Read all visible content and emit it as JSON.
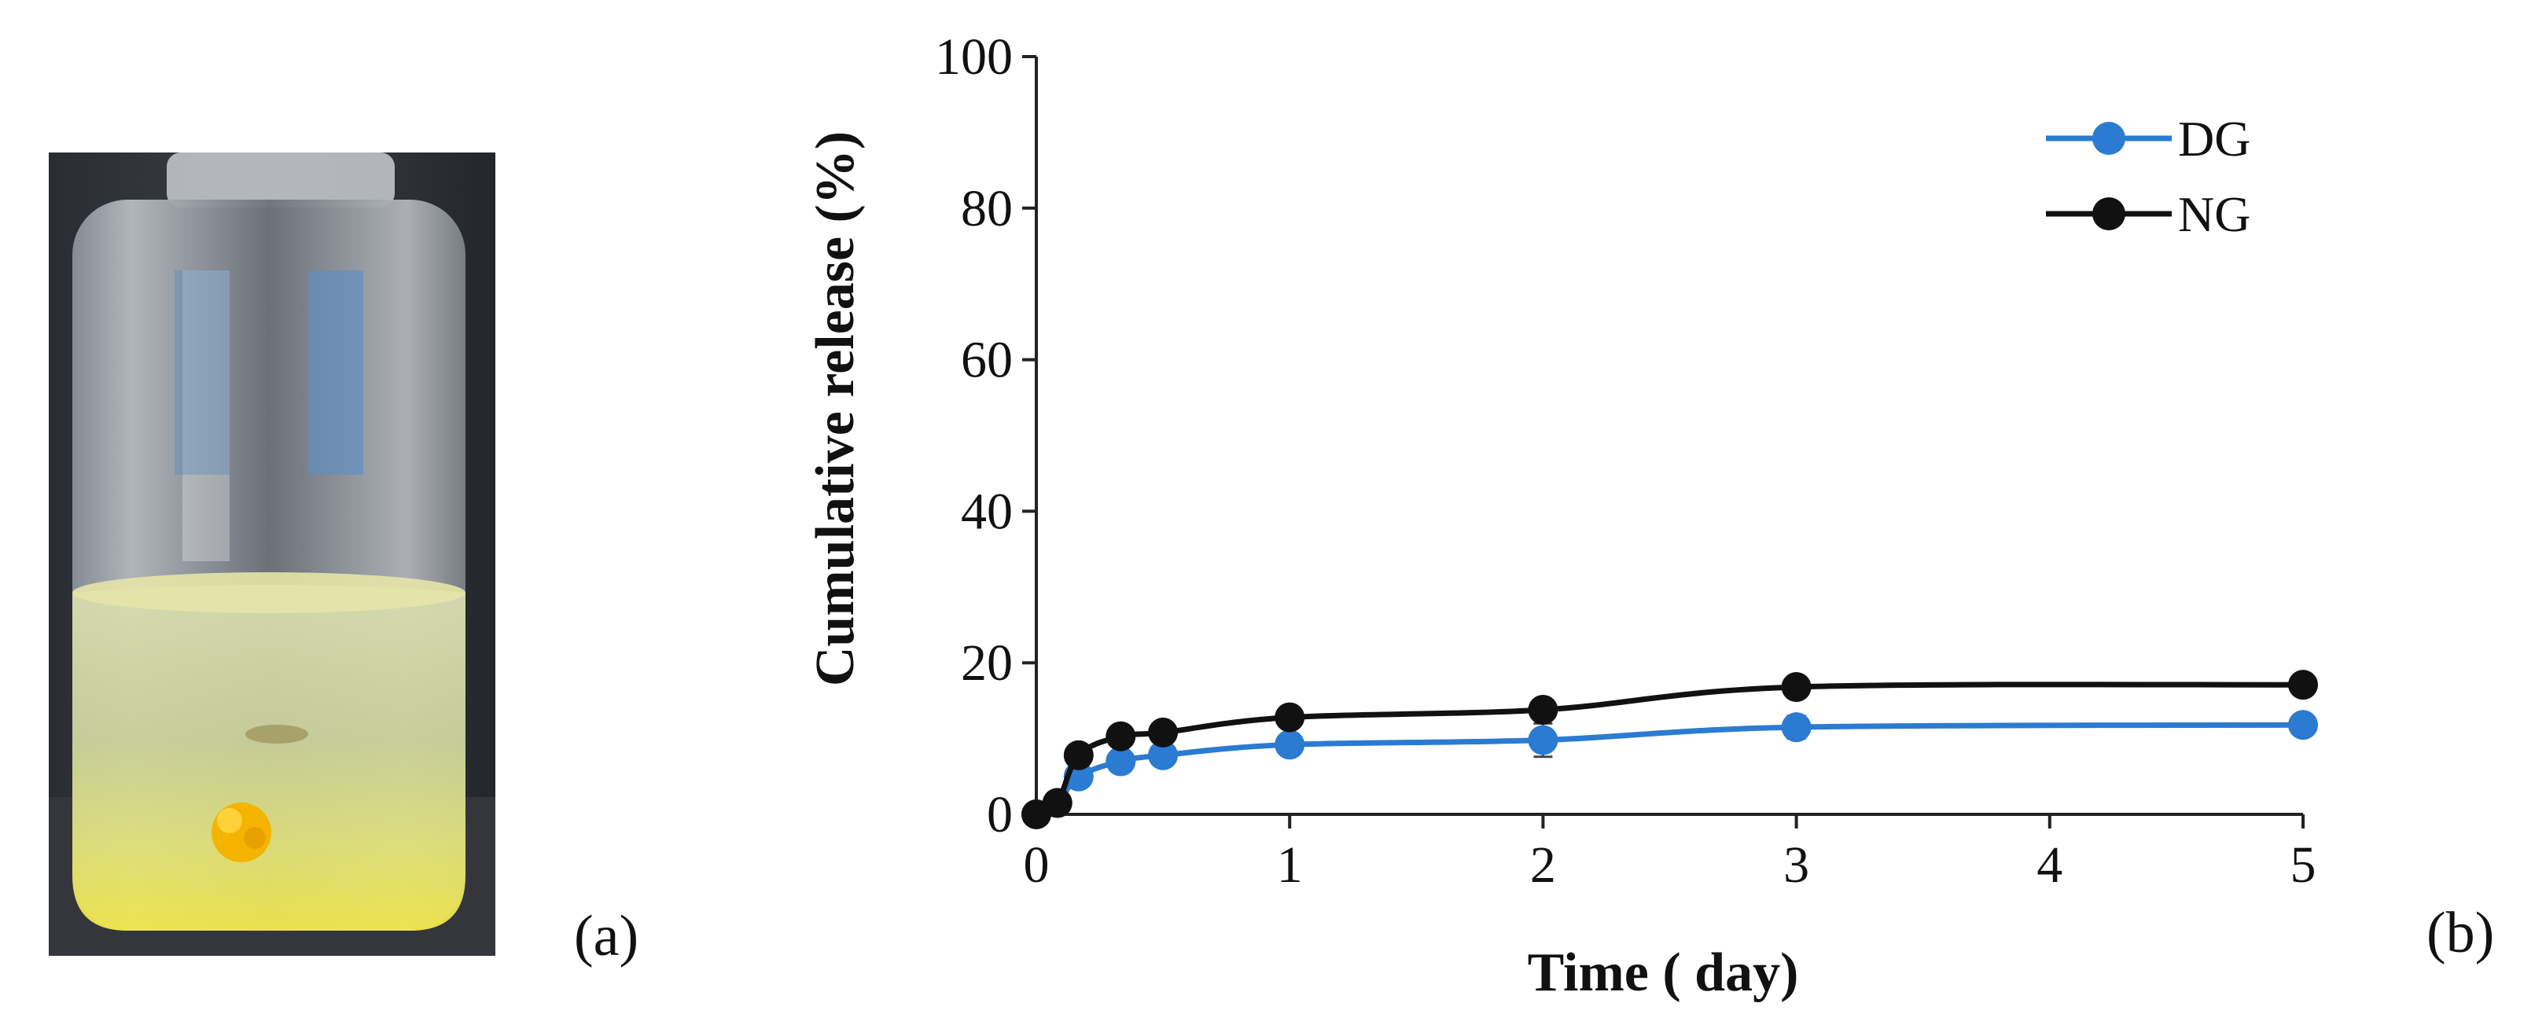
{
  "panels": {
    "a_label": "(a)",
    "b_label": "(b)"
  },
  "photo": {
    "subject": "glass vial containing liquid with a yellow gel bead"
  },
  "chart_data": {
    "type": "line",
    "title": "",
    "xlabel": "Time ( day)",
    "ylabel": "Cumulative release (%)",
    "xlim": [
      0,
      5
    ],
    "ylim": [
      0,
      100
    ],
    "x_ticks": [
      0,
      1,
      2,
      3,
      4,
      5
    ],
    "y_ticks": [
      0,
      20,
      40,
      60,
      80,
      100
    ],
    "legend_position": "top-right",
    "series": [
      {
        "name": "DG",
        "color": "#2b7bd2",
        "x": [
          0,
          0.083,
          0.167,
          0.333,
          0.5,
          1,
          2,
          3,
          5
        ],
        "values": [
          0,
          1.5,
          5,
          7,
          7.8,
          9.2,
          9.8,
          11.5,
          11.8
        ],
        "error": [
          0,
          0.3,
          0.8,
          0.8,
          0.8,
          0.8,
          2.2,
          1.5,
          1.3
        ]
      },
      {
        "name": "NG",
        "color": "#111111",
        "x": [
          0,
          0.083,
          0.167,
          0.333,
          0.5,
          1,
          2,
          3,
          5
        ],
        "values": [
          0,
          1.5,
          7.8,
          10.3,
          10.8,
          12.8,
          13.8,
          16.8,
          17.1
        ],
        "error": [
          0,
          0.3,
          0.8,
          0.8,
          0.8,
          0.8,
          0.8,
          0.8,
          0.8
        ]
      }
    ]
  }
}
